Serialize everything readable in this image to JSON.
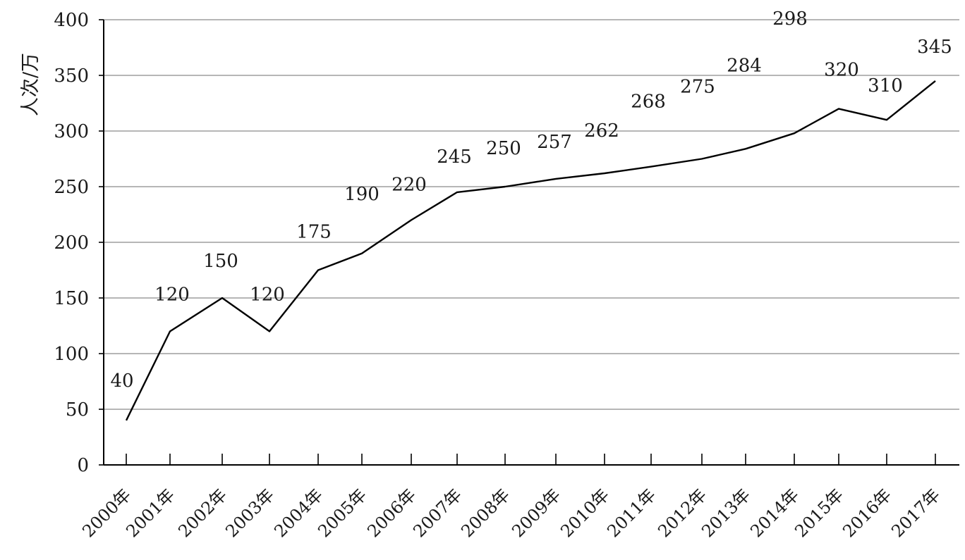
{
  "chart_data": {
    "type": "line",
    "title": "",
    "xlabel": "",
    "ylabel": "人次/万",
    "categories": [
      "2000年",
      "2001年",
      "2002年",
      "2003年",
      "2004年",
      "2005年",
      "2006年",
      "2007年",
      "2008年",
      "2009年",
      "2010年",
      "2011年",
      "2012年",
      "2013年",
      "2014年",
      "2015年",
      "2016年",
      "2017年"
    ],
    "series": [
      {
        "values": [
          40,
          120,
          150,
          120,
          175,
          190,
          220,
          245,
          250,
          257,
          262,
          268,
          275,
          284,
          298,
          320,
          310,
          345
        ]
      }
    ],
    "ylim": [
      0,
      400
    ],
    "yticks": [
      0,
      50,
      100,
      150,
      200,
      250,
      300,
      350,
      400
    ],
    "grid": "horizontal",
    "legend": "none",
    "colors": {
      "line": "#000000",
      "grid": "#9e9e9e",
      "axis": "#000000",
      "text": "#1a1a1a"
    }
  }
}
